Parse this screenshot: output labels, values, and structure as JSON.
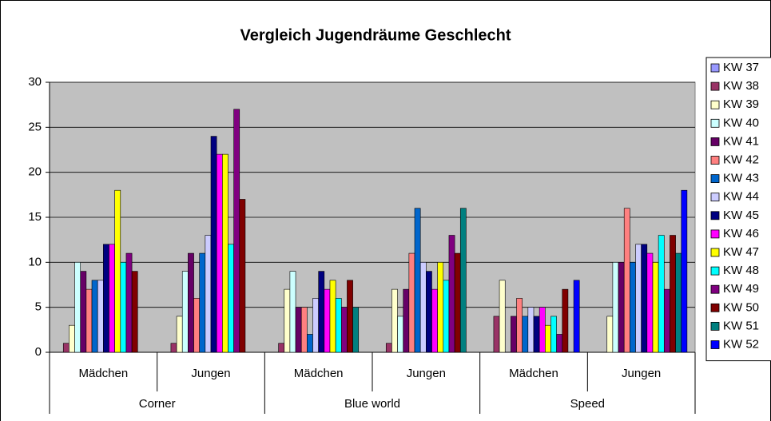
{
  "chart_data": {
    "type": "bar",
    "title": "Vergleich Jugendräume Geschlecht",
    "categories": [
      "Mädchen",
      "Jungen",
      "Mädchen",
      "Jungen",
      "Mädchen",
      "Jungen"
    ],
    "category_groups": [
      "Corner",
      "Blue world",
      "Speed"
    ],
    "ylim": [
      0,
      30
    ],
    "yticks": [
      0,
      5,
      10,
      15,
      20,
      25,
      30
    ],
    "grid": true,
    "plot_background": "#c0c0c0",
    "legend": "right",
    "series": [
      {
        "name": "KW 37",
        "color": "#9999ff",
        "values": [
          0,
          0,
          0,
          0,
          0,
          0
        ]
      },
      {
        "name": "KW 38",
        "color": "#993366",
        "values": [
          1,
          1,
          1,
          1,
          4,
          0
        ]
      },
      {
        "name": "KW 39",
        "color": "#ffffcc",
        "values": [
          3,
          4,
          7,
          7,
          8,
          4
        ]
      },
      {
        "name": "KW 40",
        "color": "#ccffff",
        "values": [
          10,
          9,
          9,
          4,
          0,
          10
        ]
      },
      {
        "name": "KW 41",
        "color": "#660066",
        "values": [
          9,
          11,
          5,
          7,
          4,
          10
        ]
      },
      {
        "name": "KW 42",
        "color": "#ff8080",
        "values": [
          7,
          6,
          5,
          11,
          6,
          16
        ]
      },
      {
        "name": "KW 43",
        "color": "#0066cc",
        "values": [
          8,
          11,
          2,
          16,
          4,
          10
        ]
      },
      {
        "name": "KW 44",
        "color": "#ccccff",
        "values": [
          8,
          13,
          6,
          10,
          5,
          12
        ]
      },
      {
        "name": "KW 45",
        "color": "#000080",
        "values": [
          12,
          24,
          9,
          9,
          4,
          12
        ]
      },
      {
        "name": "KW 46",
        "color": "#ff00ff",
        "values": [
          12,
          22,
          7,
          7,
          5,
          11
        ]
      },
      {
        "name": "KW 47",
        "color": "#ffff00",
        "values": [
          18,
          22,
          8,
          10,
          3,
          10
        ]
      },
      {
        "name": "KW 48",
        "color": "#00ffff",
        "values": [
          10,
          12,
          6,
          8,
          4,
          13
        ]
      },
      {
        "name": "KW 49",
        "color": "#800080",
        "values": [
          11,
          27,
          5,
          13,
          2,
          7
        ]
      },
      {
        "name": "KW 50",
        "color": "#800000",
        "values": [
          9,
          17,
          8,
          11,
          7,
          13
        ]
      },
      {
        "name": "KW 51",
        "color": "#008080",
        "values": [
          0,
          0,
          5,
          16,
          0,
          11
        ]
      },
      {
        "name": "KW 52",
        "color": "#0000ff",
        "values": [
          0,
          0,
          0,
          0,
          8,
          18
        ]
      }
    ]
  }
}
